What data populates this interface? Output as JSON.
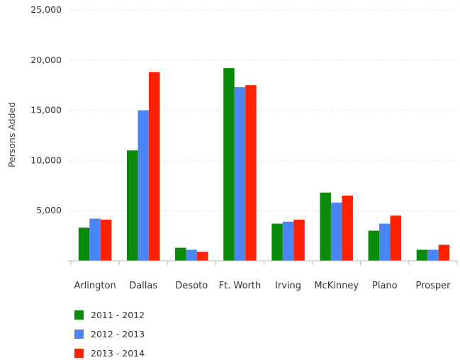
{
  "chart_data": {
    "type": "bar",
    "title": "",
    "xlabel": "",
    "ylabel": "Persons Added",
    "ylim": [
      0,
      25000
    ],
    "yticks": [
      5000,
      10000,
      15000,
      20000,
      25000
    ],
    "ytick_labels": [
      "5,000",
      "10,000",
      "15,000",
      "20,000",
      "25,000"
    ],
    "grid": "horizontal dotted",
    "legend_position": "bottom-left",
    "categories": [
      "Arlington",
      "Dallas",
      "Desoto",
      "Ft. Worth",
      "Irving",
      "McKinney",
      "Plano",
      "Prosper"
    ],
    "series": [
      {
        "name": "2011 - 2012",
        "color": "#0a8a0a",
        "values": [
          3300,
          11000,
          1300,
          19200,
          3700,
          6800,
          3000,
          1100
        ]
      },
      {
        "name": "2012 - 2013",
        "color": "#4a86f7",
        "values": [
          4200,
          15000,
          1100,
          17300,
          3900,
          5800,
          3700,
          1100
        ]
      },
      {
        "name": "2013 - 2014",
        "color": "#ff2200",
        "values": [
          4100,
          18800,
          900,
          17500,
          4100,
          6500,
          4500,
          1600
        ]
      }
    ]
  }
}
